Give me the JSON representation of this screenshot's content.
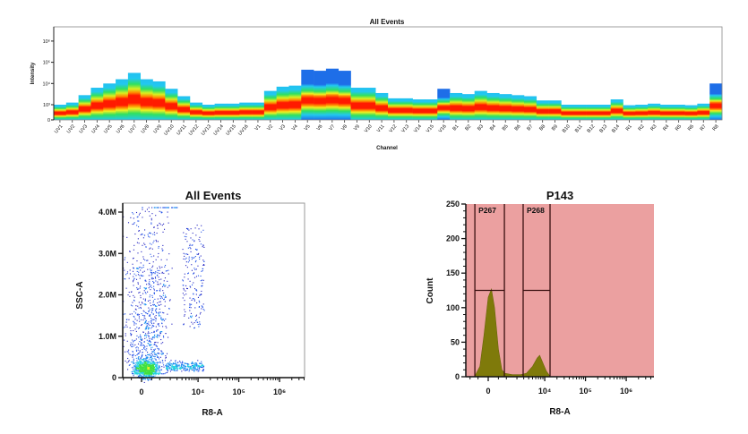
{
  "chart_data": [
    {
      "type": "heatmap",
      "title": "All Events",
      "xlabel": "Channel",
      "ylabel": "Intensity",
      "y_scale": "log",
      "y_ticks": [
        "0",
        "10³",
        "10⁴",
        "10⁵",
        "10⁶"
      ],
      "channels": [
        "UV1",
        "UV2",
        "UV3",
        "UV4",
        "UV5",
        "UV6",
        "UV7",
        "UV8",
        "UV9",
        "UV10",
        "UV11",
        "UV12",
        "UV13",
        "UV14",
        "UV15",
        "UV16",
        "V1",
        "V2",
        "V3",
        "V4",
        "V5",
        "V6",
        "V7",
        "V8",
        "V9",
        "V10",
        "V11",
        "V12",
        "V13",
        "V14",
        "V15",
        "V16",
        "B1",
        "B2",
        "B3",
        "B4",
        "B5",
        "B6",
        "B7",
        "B8",
        "B9",
        "B10",
        "B11",
        "B12",
        "B13",
        "B14",
        "R1",
        "R2",
        "R3",
        "R4",
        "R5",
        "R6",
        "R7",
        "R8"
      ],
      "max_intensity_log10": [
        3.0,
        3.1,
        3.45,
        3.8,
        4.0,
        4.2,
        4.5,
        4.2,
        4.1,
        3.75,
        3.4,
        3.1,
        3.0,
        3.05,
        3.05,
        3.1,
        3.1,
        3.65,
        3.85,
        3.9,
        4.65,
        4.6,
        4.7,
        4.6,
        3.8,
        3.8,
        3.55,
        3.3,
        3.3,
        3.25,
        3.25,
        3.75,
        3.55,
        3.5,
        3.65,
        3.55,
        3.5,
        3.45,
        3.4,
        3.2,
        3.2,
        3.0,
        3.0,
        3.0,
        3.0,
        3.25,
        2.95,
        3.0,
        3.05,
        3.0,
        3.0,
        2.95,
        3.05,
        4.0
      ],
      "saturated_channels": [
        "V5",
        "V6",
        "V7",
        "V8",
        "V16",
        "R8"
      ],
      "colors": {
        "low": "#1e6ee8",
        "high": "#ff1a00"
      }
    },
    {
      "type": "scatter",
      "title": "All Events",
      "xlabel": "R8-A",
      "ylabel": "SSC-A",
      "x_scale": "biexponential",
      "x_ticks": [
        "0",
        "10⁴",
        "10⁵",
        "10⁶"
      ],
      "y_ticks": [
        "0",
        "1.0M",
        "2.0M",
        "3.0M",
        "4.0M"
      ],
      "ylim": [
        0,
        4200000
      ]
    },
    {
      "type": "area",
      "title": "P143",
      "xlabel": "R8-A",
      "ylabel": "Count",
      "x_scale": "biexponential",
      "x_ticks": [
        "0",
        "10⁴",
        "10⁵",
        "10⁶"
      ],
      "y_ticks": [
        "0",
        "50",
        "100",
        "150",
        "200",
        "250"
      ],
      "ylim": [
        0,
        250
      ],
      "x": [
        -700,
        -400,
        -200,
        0,
        150,
        300,
        500,
        700,
        900,
        1500,
        2500,
        3500,
        5000,
        6500,
        7500,
        9000,
        11000,
        13000,
        14000
      ],
      "counts": [
        0,
        15,
        60,
        115,
        127,
        100,
        40,
        10,
        5,
        3,
        3,
        5,
        15,
        27,
        31,
        20,
        8,
        2,
        0
      ],
      "fill_color": "#7f7a0a",
      "background_color": "#eba0a0",
      "gates": [
        {
          "name": "P267",
          "from": -680,
          "to": 860,
          "level": 125
        },
        {
          "name": "P268",
          "from": 2900,
          "to": 13500,
          "level": 125
        }
      ]
    }
  ]
}
